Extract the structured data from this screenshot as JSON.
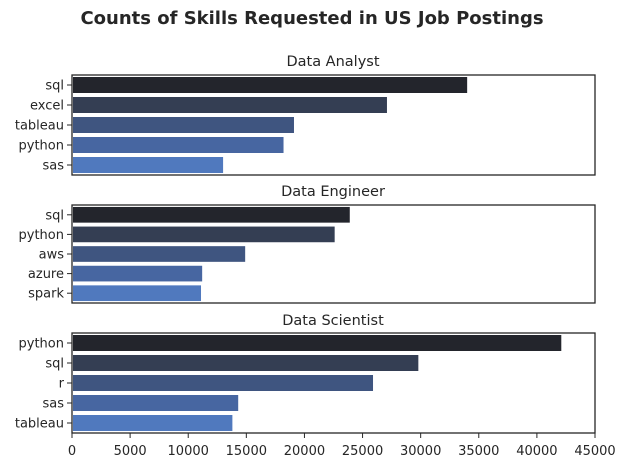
{
  "chart_data": {
    "type": "bar",
    "orientation": "horizontal",
    "title": "Counts of Skills Requested in US Job Postings",
    "xlim": [
      0,
      45000
    ],
    "xticks": [
      "0",
      "5000",
      "10000",
      "15000",
      "20000",
      "25000",
      "30000",
      "35000",
      "40000",
      "45000"
    ],
    "grid": false,
    "colors": [
      "#23252c",
      "#343e53",
      "#3f5580",
      "#4766a1",
      "#5079be"
    ],
    "panels": [
      {
        "title": "Data Analyst",
        "categories": [
          "sql",
          "excel",
          "tableau",
          "python",
          "sas"
        ],
        "values": [
          34000,
          27100,
          19100,
          18200,
          13000
        ]
      },
      {
        "title": "Data Engineer",
        "categories": [
          "sql",
          "python",
          "aws",
          "azure",
          "spark"
        ],
        "values": [
          23900,
          22600,
          14900,
          11200,
          11100
        ]
      },
      {
        "title": "Data Scientist",
        "categories": [
          "python",
          "sql",
          "r",
          "sas",
          "tableau"
        ],
        "values": [
          42100,
          29800,
          25900,
          14300,
          13800
        ]
      }
    ]
  }
}
